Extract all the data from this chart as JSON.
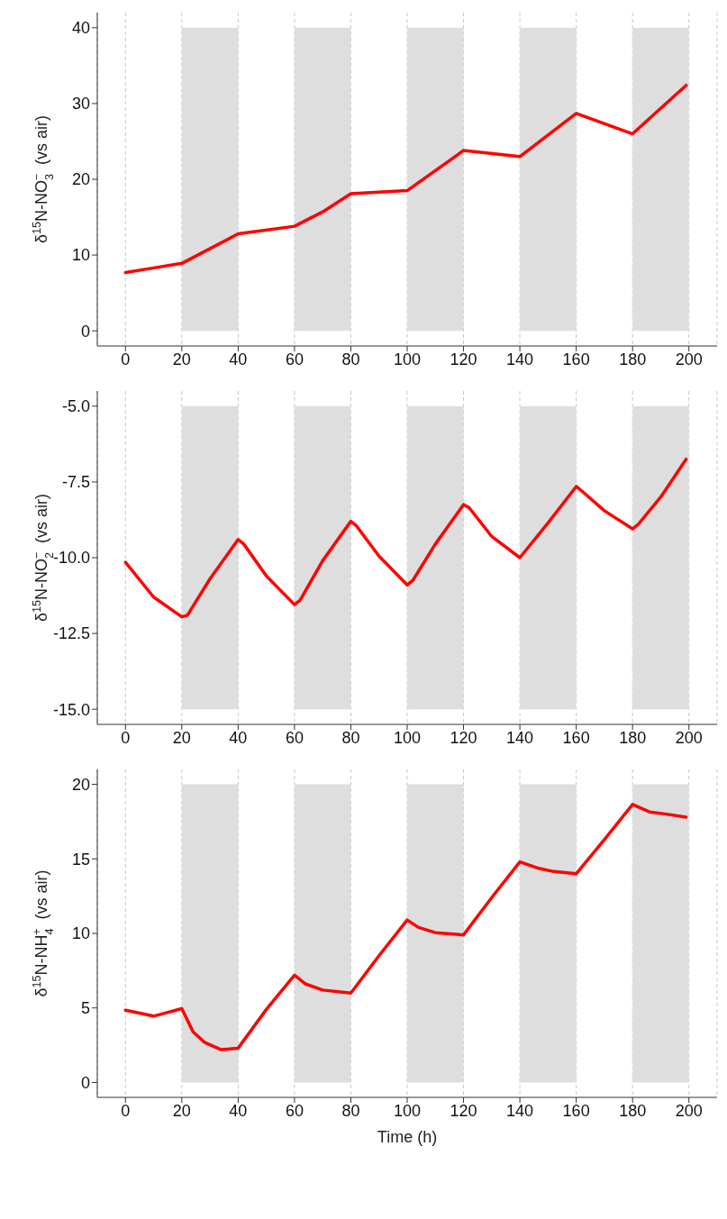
{
  "chart_data": [
    {
      "type": "line",
      "ylabel": "δ$^{15}$N-NO$_{3}$$^{−}$  (vs air)",
      "x": [
        0,
        10,
        20,
        40,
        60,
        70,
        80,
        100,
        120,
        140,
        160,
        180,
        199
      ],
      "series": [
        {
          "color": "#ff0000",
          "values": [
            7.7,
            8.3,
            8.9,
            12.8,
            13.8,
            15.7,
            18.1,
            18.5,
            23.8,
            23.0,
            28.7,
            26.0,
            32.4
          ]
        }
      ],
      "xlim": [
        -10,
        210
      ],
      "xticks": [
        0,
        20,
        40,
        60,
        80,
        100,
        120,
        140,
        160,
        180,
        200
      ],
      "ylim": [
        -2,
        42
      ],
      "yticks": [
        0,
        10,
        20,
        30,
        40
      ],
      "grid": "x",
      "line_style": "solid",
      "bands": [
        {
          "axis": "x",
          "from": 20,
          "to": 40,
          "color": "#dedede"
        },
        {
          "axis": "x",
          "from": 60,
          "to": 80,
          "color": "#dedede"
        },
        {
          "axis": "x",
          "from": 100,
          "to": 120,
          "color": "#dedede"
        },
        {
          "axis": "x",
          "from": 140,
          "to": 160,
          "color": "#dedede"
        },
        {
          "axis": "x",
          "from": 180,
          "to": 200,
          "color": "#dedede"
        }
      ]
    },
    {
      "type": "line",
      "ylabel": "δ$^{15}$N-NO$_{2}$$^{−}$  (vs air)",
      "x": [
        0,
        10,
        20,
        22,
        30,
        40,
        42,
        50,
        60,
        62,
        70,
        80,
        82,
        90,
        100,
        102,
        110,
        120,
        122,
        130,
        140,
        150,
        160,
        162,
        170,
        180,
        182,
        190,
        199
      ],
      "series": [
        {
          "color": "#ff0000",
          "values": [
            -10.15,
            -11.3,
            -11.95,
            -11.9,
            -10.7,
            -9.4,
            -9.55,
            -10.6,
            -11.55,
            -11.4,
            -10.1,
            -8.8,
            -8.95,
            -9.95,
            -10.9,
            -10.75,
            -9.55,
            -8.25,
            -8.35,
            -9.3,
            -10.0,
            -8.85,
            -7.65,
            -7.8,
            -8.45,
            -9.05,
            -8.9,
            -8.0,
            -6.75
          ]
        }
      ],
      "xlim": [
        -10,
        210
      ],
      "xticks": [
        0,
        20,
        40,
        60,
        80,
        100,
        120,
        140,
        160,
        180,
        200
      ],
      "ylim": [
        -15.5,
        -4.5
      ],
      "yticks": [
        {
          "value": -15,
          "label": "-15.0"
        },
        {
          "value": -12.5,
          "label": "-12.5"
        },
        {
          "value": -10,
          "label": "-10.0"
        },
        {
          "value": -7.5,
          "label": "-7.5"
        },
        {
          "value": -5,
          "label": "-5.0"
        }
      ],
      "grid": "x",
      "line_style": "solid",
      "bands": [
        {
          "axis": "x",
          "from": 20,
          "to": 40,
          "color": "#dedede"
        },
        {
          "axis": "x",
          "from": 60,
          "to": 80,
          "color": "#dedede"
        },
        {
          "axis": "x",
          "from": 100,
          "to": 120,
          "color": "#dedede"
        },
        {
          "axis": "x",
          "from": 140,
          "to": 160,
          "color": "#dedede"
        },
        {
          "axis": "x",
          "from": 180,
          "to": 200,
          "color": "#dedede"
        }
      ]
    },
    {
      "type": "line",
      "ylabel": "δ$^{15}$N-NH$_{4}$$^{+}$  (vs air)",
      "xlabel": "Time (h)",
      "x": [
        0,
        10,
        20,
        24,
        28,
        34,
        40,
        50,
        60,
        64,
        70,
        80,
        90,
        100,
        104,
        110,
        120,
        130,
        140,
        146,
        152,
        160,
        170,
        180,
        186,
        192,
        199
      ],
      "series": [
        {
          "color": "#ff0000",
          "values": [
            4.85,
            4.45,
            4.95,
            3.4,
            2.7,
            2.2,
            2.3,
            4.9,
            7.2,
            6.6,
            6.2,
            6.0,
            8.5,
            10.9,
            10.4,
            10.05,
            9.9,
            12.4,
            14.8,
            14.4,
            14.15,
            14.0,
            16.3,
            18.65,
            18.15,
            18.0,
            17.8
          ]
        }
      ],
      "xlim": [
        -10,
        210
      ],
      "xticks": [
        0,
        20,
        40,
        60,
        80,
        100,
        120,
        140,
        160,
        180,
        200
      ],
      "ylim": [
        -1,
        21
      ],
      "yticks": [
        0,
        5,
        10,
        15,
        20
      ],
      "grid": "x",
      "line_style": "solid",
      "bands": [
        {
          "axis": "x",
          "from": 20,
          "to": 40,
          "color": "#dedede"
        },
        {
          "axis": "x",
          "from": 60,
          "to": 80,
          "color": "#dedede"
        },
        {
          "axis": "x",
          "from": 100,
          "to": 120,
          "color": "#dedede"
        },
        {
          "axis": "x",
          "from": 140,
          "to": 160,
          "color": "#dedede"
        },
        {
          "axis": "x",
          "from": 180,
          "to": 200,
          "color": "#dedede"
        }
      ]
    }
  ]
}
